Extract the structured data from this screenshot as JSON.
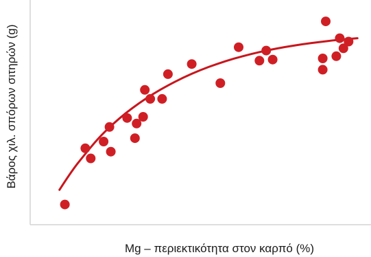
{
  "chart_data": {
    "type": "scatter",
    "xlabel": "Mg – περιεκτικότητα στον καρπό (%)",
    "ylabel": "Βάρος χιλ. σπόρων σιτηρών (g)",
    "xlim": [
      0,
      100
    ],
    "ylim": [
      0,
      100
    ],
    "grid": false,
    "legend": "none",
    "colors": {
      "points": "#cf1f25",
      "curve": "#c8161d",
      "axes": "#d4d4d4"
    },
    "x": [
      10.2,
      16.2,
      17.8,
      21.6,
      23.3,
      23.7,
      28.5,
      30.8,
      31.3,
      33.2,
      33.7,
      35.3,
      38.8,
      40.5,
      47.5,
      55.9,
      61.3,
      67.4,
      69.4,
      71.3,
      86.0,
      86.0,
      86.9,
      90.0,
      91.0,
      92.1,
      93.6
    ],
    "y": [
      9.0,
      34.0,
      29.5,
      37.0,
      43.5,
      32.5,
      47.5,
      38.5,
      45.0,
      48.0,
      60.0,
      56.0,
      56.0,
      67.0,
      71.5,
      63.0,
      79.0,
      73.0,
      77.5,
      73.5,
      69.0,
      74.0,
      90.5,
      75.0,
      83.0,
      78.5,
      81.5
    ],
    "fit": {
      "type": "curve",
      "x": [
        8.6,
        12.0,
        16.0,
        20.0,
        24.0,
        28.0,
        32.0,
        36.0,
        40.0,
        45.0,
        50.0,
        55.0,
        60.0,
        65.0,
        70.0,
        75.0,
        80.0,
        85.0,
        90.0,
        96.2
      ],
      "y": [
        15.5,
        23.5,
        31.2,
        38.4,
        44.4,
        49.6,
        54.1,
        58.1,
        61.6,
        65.5,
        68.8,
        71.6,
        74.0,
        76.0,
        77.7,
        79.1,
        80.3,
        81.3,
        82.2,
        83.0
      ]
    }
  }
}
